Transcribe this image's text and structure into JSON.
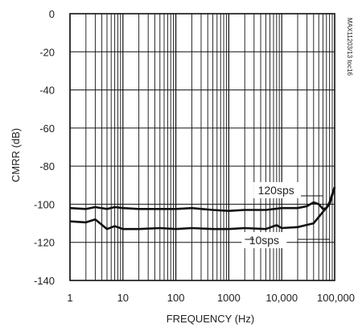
{
  "chart_data": {
    "type": "line",
    "xlabel": "FREQUENCY (Hz)",
    "ylabel": "CMRR (dB)",
    "x_scale": "log",
    "xlim": [
      1,
      100000
    ],
    "ylim": [
      -140,
      0
    ],
    "x_ticks": [
      {
        "value": 1,
        "label": "1"
      },
      {
        "value": 10,
        "label": "10"
      },
      {
        "value": 100,
        "label": "100"
      },
      {
        "value": 1000,
        "label": "1000"
      },
      {
        "value": 10000,
        "label": "10,000"
      },
      {
        "value": 100000,
        "label": "100,000"
      }
    ],
    "y_ticks": [
      {
        "value": 0,
        "label": "0"
      },
      {
        "value": -20,
        "label": "-20"
      },
      {
        "value": -40,
        "label": "-40"
      },
      {
        "value": -60,
        "label": "-60"
      },
      {
        "value": -80,
        "label": "-80"
      },
      {
        "value": -100,
        "label": "-100"
      },
      {
        "value": -120,
        "label": "-120"
      },
      {
        "value": -140,
        "label": "-140"
      }
    ],
    "grid": true,
    "watermark": "MAX11203/13 toc16",
    "series": [
      {
        "name": "120sps",
        "color": "#111111",
        "points": [
          [
            1,
            -102
          ],
          [
            2,
            -102.5
          ],
          [
            3,
            -101.5
          ],
          [
            5,
            -102.5
          ],
          [
            7,
            -101.5
          ],
          [
            10,
            -102
          ],
          [
            20,
            -102.5
          ],
          [
            50,
            -102.5
          ],
          [
            100,
            -102.5
          ],
          [
            200,
            -102
          ],
          [
            500,
            -103
          ],
          [
            1000,
            -103.5
          ],
          [
            2000,
            -103
          ],
          [
            5000,
            -103
          ],
          [
            10000,
            -102
          ],
          [
            20000,
            -102
          ],
          [
            30000,
            -101
          ],
          [
            40000,
            -99
          ],
          [
            50000,
            -100
          ],
          [
            60000,
            -102.5
          ],
          [
            70000,
            -102
          ],
          [
            80000,
            -99
          ],
          [
            100000,
            -91
          ]
        ]
      },
      {
        "name": "10sps",
        "color": "#111111",
        "points": [
          [
            1,
            -109
          ],
          [
            2,
            -109.5
          ],
          [
            3,
            -108
          ],
          [
            5,
            -113
          ],
          [
            7,
            -111.5
          ],
          [
            10,
            -113
          ],
          [
            20,
            -113
          ],
          [
            50,
            -112.5
          ],
          [
            100,
            -113
          ],
          [
            200,
            -112.5
          ],
          [
            500,
            -113
          ],
          [
            1000,
            -113
          ],
          [
            2000,
            -112.5
          ],
          [
            5000,
            -113
          ],
          [
            8000,
            -111
          ],
          [
            10000,
            -112.5
          ],
          [
            20000,
            -112
          ],
          [
            40000,
            -110
          ],
          [
            60000,
            -104
          ],
          [
            80000,
            -100
          ],
          [
            100000,
            -91
          ]
        ]
      }
    ]
  }
}
